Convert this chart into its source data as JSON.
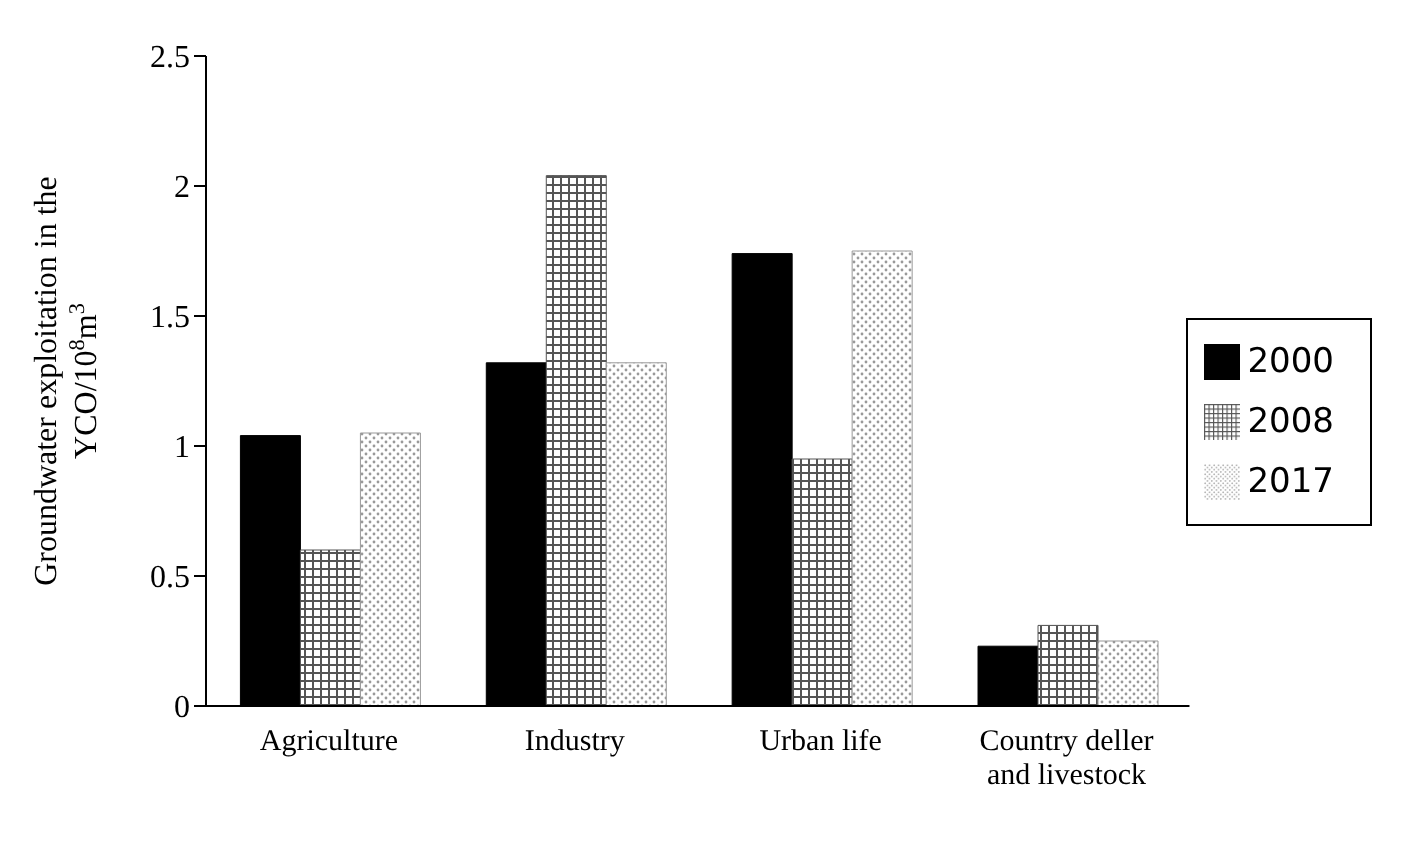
{
  "chart_data": {
    "type": "bar",
    "ylabel": "Groundwater exploitation in the YCO/10$^{8}$m$^{3}$",
    "categories": [
      "Agriculture",
      "Industry",
      "Urban life",
      "Country deller and livestock"
    ],
    "series": [
      {
        "name": "2000",
        "color": "#000000",
        "values": [
          1.04,
          1.32,
          1.74,
          0.23
        ]
      },
      {
        "name": "2008",
        "color": "#555555",
        "values": [
          0.6,
          2.04,
          0.95,
          0.31
        ]
      },
      {
        "name": "2017",
        "color": "#999999",
        "values": [
          1.05,
          1.32,
          1.75,
          0.25
        ]
      }
    ],
    "ylim": [
      0,
      2.5
    ],
    "yticks": [
      0,
      0.5,
      1,
      1.5,
      2,
      2.5
    ],
    "grid": false,
    "legend": "right"
  }
}
